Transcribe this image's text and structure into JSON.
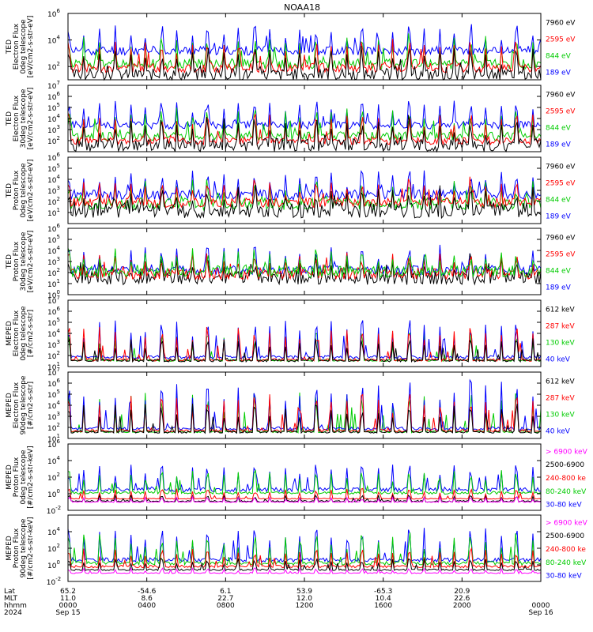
{
  "title": "NOAA18",
  "colors": {
    "black": "#000000",
    "red": "#ff0000",
    "green": "#00cc00",
    "blue": "#0000ff",
    "magenta": "#ff00ff"
  },
  "chart_data": [
    {
      "type": "line",
      "panel": 1,
      "ylabel": [
        "TED",
        "Electron Flux",
        "0deg telescope",
        "[eV/cm2-s-str-eV]"
      ],
      "ylog": true,
      "ylim_exp": [
        1,
        6
      ],
      "yticks": [
        {
          "exp": 2,
          "label": "10"
        },
        {
          "exp": 4,
          "label": "10"
        },
        {
          "exp": 6,
          "label": "10"
        }
      ],
      "legend": [
        {
          "label": "7960 eV",
          "color": "black"
        },
        {
          "label": "2595 eV",
          "color": "red"
        },
        {
          "label": "844 eV",
          "color": "green"
        },
        {
          "label": "189 eV",
          "color": "blue"
        }
      ],
      "series": [
        {
          "color": "blue",
          "base": 3.2,
          "noise": 0.35,
          "peak": 5.0,
          "seed": 11
        },
        {
          "color": "green",
          "base": 2.2,
          "noise": 0.4,
          "peak": 4.3,
          "seed": 12
        },
        {
          "color": "red",
          "base": 1.9,
          "noise": 0.35,
          "peak": 3.9,
          "seed": 13
        },
        {
          "color": "black",
          "base": 1.4,
          "noise": 0.45,
          "peak": 3.3,
          "seed": 14
        }
      ]
    },
    {
      "type": "line",
      "panel": 2,
      "ylabel": [
        "TED",
        "Electron Flux",
        "30deg telescope",
        "[eV/cm2-s-str-eV]"
      ],
      "ylog": true,
      "ylim_exp": [
        1,
        7
      ],
      "yticks": [
        {
          "exp": 2,
          "label": "10"
        },
        {
          "exp": 3,
          "label": "10"
        },
        {
          "exp": 4,
          "label": "10"
        },
        {
          "exp": 5,
          "label": "10"
        },
        {
          "exp": 6,
          "label": "10"
        },
        {
          "exp": 7,
          "label": "10"
        }
      ],
      "legend": [
        {
          "label": "7960 eV",
          "color": "black"
        },
        {
          "label": "2595 eV",
          "color": "red"
        },
        {
          "label": "844 eV",
          "color": "green"
        },
        {
          "label": "189 eV",
          "color": "blue"
        }
      ],
      "series": [
        {
          "color": "blue",
          "base": 3.4,
          "noise": 0.35,
          "peak": 5.6,
          "seed": 21
        },
        {
          "color": "green",
          "base": 2.4,
          "noise": 0.4,
          "peak": 4.9,
          "seed": 22
        },
        {
          "color": "red",
          "base": 2.0,
          "noise": 0.35,
          "peak": 4.4,
          "seed": 23
        },
        {
          "color": "black",
          "base": 1.6,
          "noise": 0.6,
          "peak": 3.8,
          "seed": 24
        }
      ]
    },
    {
      "type": "line",
      "panel": 3,
      "ylabel": [
        "TED",
        "Proton Flux",
        "0deg telescope",
        "[eV/cm2-s-str-eV]"
      ],
      "ylog": true,
      "ylim_exp": [
        0,
        6
      ],
      "yticks": [
        {
          "exp": 1,
          "label": "10"
        },
        {
          "exp": 2,
          "label": "10"
        },
        {
          "exp": 3,
          "label": "10"
        },
        {
          "exp": 4,
          "label": "10"
        },
        {
          "exp": 5,
          "label": "10"
        },
        {
          "exp": 6,
          "label": "10"
        }
      ],
      "legend": [
        {
          "label": "7960 eV",
          "color": "black"
        },
        {
          "label": "2595 eV",
          "color": "red"
        },
        {
          "label": "844 eV",
          "color": "green"
        },
        {
          "label": "189 eV",
          "color": "blue"
        }
      ],
      "series": [
        {
          "color": "blue",
          "base": 2.6,
          "noise": 0.45,
          "peak": 4.6,
          "seed": 31
        },
        {
          "color": "green",
          "base": 1.8,
          "noise": 0.55,
          "peak": 3.7,
          "seed": 32
        },
        {
          "color": "red",
          "base": 1.9,
          "noise": 0.45,
          "peak": 3.9,
          "seed": 33
        },
        {
          "color": "black",
          "base": 1.2,
          "noise": 0.7,
          "peak": 3.0,
          "seed": 34
        }
      ]
    },
    {
      "type": "line",
      "panel": 4,
      "ylabel": [
        "TED",
        "Proton Flux",
        "30deg telescope",
        "[eV/cm2-s-str-eV]"
      ],
      "ylog": true,
      "ylim_exp": [
        0,
        6
      ],
      "yticks": [
        {
          "exp": 0,
          "label": "10"
        },
        {
          "exp": 1,
          "label": "10"
        },
        {
          "exp": 2,
          "label": "10"
        },
        {
          "exp": 3,
          "label": "10"
        },
        {
          "exp": 4,
          "label": "10"
        },
        {
          "exp": 5,
          "label": "10"
        },
        {
          "exp": 6,
          "label": "10"
        }
      ],
      "legend": [
        {
          "label": "7960 eV",
          "color": "black"
        },
        {
          "label": "2595 eV",
          "color": "red"
        },
        {
          "label": "844 eV",
          "color": "green"
        },
        {
          "label": "189 eV",
          "color": "blue"
        }
      ],
      "series": [
        {
          "color": "blue",
          "base": 2.2,
          "noise": 0.45,
          "peak": 4.3,
          "seed": 41
        },
        {
          "color": "black",
          "base": 1.5,
          "noise": 0.6,
          "peak": 3.2,
          "seed": 44
        },
        {
          "color": "red",
          "base": 1.9,
          "noise": 0.5,
          "peak": 3.6,
          "seed": 43
        },
        {
          "color": "green",
          "base": 2.1,
          "noise": 0.55,
          "peak": 3.9,
          "seed": 42
        }
      ]
    },
    {
      "type": "line",
      "panel": 5,
      "ylabel": [
        "MEPED",
        "Electron Flux",
        "0deg telescope",
        "[#/cm2-s-str]"
      ],
      "ylog": true,
      "ylim_exp": [
        1,
        7
      ],
      "yticks": [
        {
          "exp": 1,
          "label": "10"
        },
        {
          "exp": 2,
          "label": "10"
        },
        {
          "exp": 3,
          "label": "10"
        },
        {
          "exp": 4,
          "label": "10"
        },
        {
          "exp": 5,
          "label": "10"
        },
        {
          "exp": 6,
          "label": "10"
        },
        {
          "exp": 7,
          "label": "10"
        }
      ],
      "legend": [
        {
          "label": "612 keV",
          "color": "black"
        },
        {
          "label": "287 keV",
          "color": "red"
        },
        {
          "label": "130 keV",
          "color": "green"
        },
        {
          "label": "40 keV",
          "color": "blue"
        }
      ],
      "series": [
        {
          "color": "green",
          "base": 1.55,
          "noise": 0.08,
          "peak": 4.2,
          "seed": 52
        },
        {
          "color": "blue",
          "base": 1.85,
          "noise": 0.15,
          "peak": 5.4,
          "seed": 51
        },
        {
          "color": "red",
          "base": 1.6,
          "noise": 0.12,
          "peak": 4.6,
          "seed": 53
        },
        {
          "color": "black",
          "base": 1.55,
          "noise": 0.12,
          "peak": 3.6,
          "seed": 54
        }
      ]
    },
    {
      "type": "line",
      "panel": 6,
      "ylabel": [
        "MEPED",
        "Electron Flux",
        "90deg telescope",
        "[#/cm2-s-str]"
      ],
      "ylog": true,
      "ylim_exp": [
        1,
        7
      ],
      "yticks": [
        {
          "exp": 1,
          "label": "10"
        },
        {
          "exp": 2,
          "label": "10"
        },
        {
          "exp": 3,
          "label": "10"
        },
        {
          "exp": 4,
          "label": "10"
        },
        {
          "exp": 5,
          "label": "10"
        },
        {
          "exp": 6,
          "label": "10"
        },
        {
          "exp": 7,
          "label": "10"
        }
      ],
      "legend": [
        {
          "label": "612 keV",
          "color": "black"
        },
        {
          "label": "287 keV",
          "color": "red"
        },
        {
          "label": "130 keV",
          "color": "green"
        },
        {
          "label": "40 keV",
          "color": "blue"
        }
      ],
      "series": [
        {
          "color": "green",
          "base": 1.6,
          "noise": 0.08,
          "peak": 5.2,
          "seed": 62
        },
        {
          "color": "blue",
          "base": 1.9,
          "noise": 0.15,
          "peak": 6.2,
          "seed": 61
        },
        {
          "color": "red",
          "base": 1.7,
          "noise": 0.12,
          "peak": 5.0,
          "seed": 63
        },
        {
          "color": "black",
          "base": 1.6,
          "noise": 0.12,
          "peak": 4.2,
          "seed": 64
        }
      ]
    },
    {
      "type": "line",
      "panel": 7,
      "ylabel": [
        "MEPED",
        "Proton Flux",
        "0deg telescope",
        "[#/cm2-s-str-keV]"
      ],
      "ylog": true,
      "ylim_exp": [
        -2,
        6
      ],
      "yticks": [
        {
          "exp": -2,
          "label": "10"
        },
        {
          "exp": 0,
          "label": "10"
        },
        {
          "exp": 2,
          "label": "10"
        },
        {
          "exp": 4,
          "label": "10"
        },
        {
          "exp": 6,
          "label": "10"
        }
      ],
      "legend": [
        {
          "label": "> 6900 keV",
          "color": "magenta"
        },
        {
          "label": "2500-6900",
          "color": "black"
        },
        {
          "label": "240-800 ke",
          "color": "red"
        },
        {
          "label": "80-240 keV",
          "color": "green"
        },
        {
          "label": "30-80 keV",
          "color": "blue"
        }
      ],
      "series": [
        {
          "color": "blue",
          "base": 0.5,
          "noise": 0.25,
          "peak": 3.6,
          "seed": 71
        },
        {
          "color": "green",
          "base": 0.1,
          "noise": 0.15,
          "peak": 2.8,
          "seed": 72
        },
        {
          "color": "red",
          "base": -0.6,
          "noise": 0.05,
          "peak": 0.6,
          "seed": 73
        },
        {
          "color": "black",
          "base": -0.9,
          "noise": 0.1,
          "peak": -0.2,
          "seed": 74
        },
        {
          "color": "magenta",
          "base": -1.0,
          "noise": 0.05,
          "peak": -0.4,
          "seed": 75
        }
      ]
    },
    {
      "type": "line",
      "panel": 8,
      "ylabel": [
        "MEPED",
        "Proton Flux",
        "90deg telescope",
        "[#/cm2-s-str-keV]"
      ],
      "ylog": true,
      "ylim_exp": [
        -2,
        6
      ],
      "yticks": [
        {
          "exp": -2,
          "label": "10"
        },
        {
          "exp": 0,
          "label": "10"
        },
        {
          "exp": 2,
          "label": "10"
        },
        {
          "exp": 4,
          "label": "10"
        }
      ],
      "legend": [
        {
          "label": "> 6900 keV",
          "color": "magenta"
        },
        {
          "label": "2500-6900",
          "color": "black"
        },
        {
          "label": "240-800 ke",
          "color": "red"
        },
        {
          "label": "80-240 keV",
          "color": "green"
        },
        {
          "label": "30-80 keV",
          "color": "blue"
        }
      ],
      "series": [
        {
          "color": "blue",
          "base": 0.6,
          "noise": 0.25,
          "peak": 4.4,
          "seed": 81
        },
        {
          "color": "green",
          "base": 0.2,
          "noise": 0.2,
          "peak": 3.8,
          "seed": 82
        },
        {
          "color": "red",
          "base": -0.2,
          "noise": 0.15,
          "peak": 2.0,
          "seed": 83
        },
        {
          "color": "black",
          "base": -0.6,
          "noise": 0.1,
          "peak": 0.8,
          "seed": 84
        },
        {
          "color": "magenta",
          "base": -1.0,
          "noise": 0.05,
          "peak": -0.4,
          "seed": 85
        }
      ]
    }
  ],
  "x_axis": {
    "row_labels": [
      "Lat",
      "MLT",
      "hhmm",
      "2024"
    ],
    "ticks": [
      {
        "lat": "65.2",
        "mlt": "11.0",
        "time": "0000",
        "date": "Sep 15"
      },
      {
        "lat": "-54.6",
        "mlt": "8.6",
        "time": "0400",
        "date": ""
      },
      {
        "lat": "6.1",
        "mlt": "22.7",
        "time": "0800",
        "date": ""
      },
      {
        "lat": "53.9",
        "mlt": "12.0",
        "time": "1200",
        "date": ""
      },
      {
        "lat": "-65.3",
        "mlt": "10.4",
        "time": "1600",
        "date": ""
      },
      {
        "lat": "20.9",
        "mlt": "22.6",
        "time": "2000",
        "date": ""
      },
      {
        "lat": "",
        "mlt": "",
        "time": "0000",
        "date": "Sep 16"
      }
    ]
  }
}
